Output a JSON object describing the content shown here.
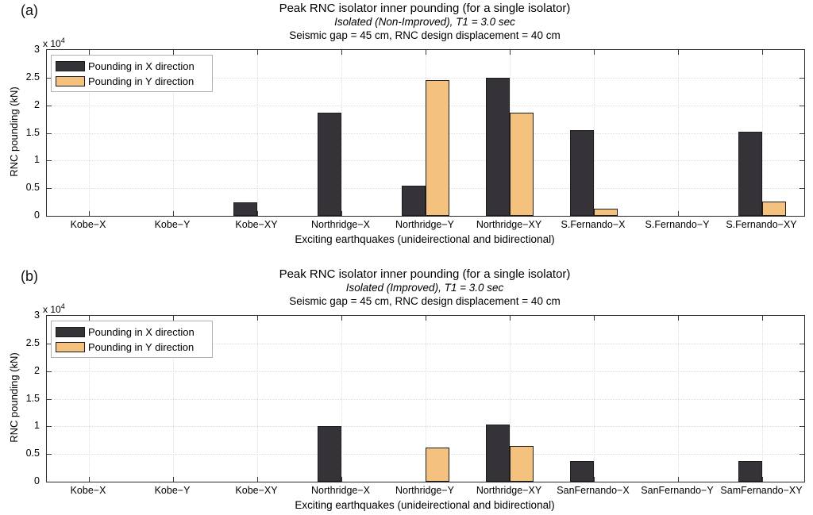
{
  "page": {
    "background": "#ffffff"
  },
  "colors": {
    "bar_x_fill": "#353338",
    "bar_y_fill": "#f5c17e",
    "bar_edge": "#1c1c1c",
    "axis": "#2b2b2b",
    "grid": "#dedede",
    "legend_border": "#b0b0b0"
  },
  "legend": {
    "items": [
      {
        "label": "Pounding in X direction"
      },
      {
        "label": "Pounding in Y direction"
      }
    ]
  },
  "axes": {
    "ylabel": "RNC pounding (kN)",
    "xlabel": "Exciting earthquakes (unideirectional and bidirectional)",
    "y_multiplier": "x 10",
    "y_multiplier_exp": "4",
    "yticks": [
      "0",
      "0.5",
      "1",
      "1.5",
      "2",
      "2.5",
      "3"
    ],
    "ylim": [
      0,
      3
    ],
    "grid": "on",
    "legend_position": "top-left inside"
  },
  "chart_data": [
    {
      "type": "bar",
      "panel_label": "(a)",
      "title": "Peak RNC isolator inner pounding (for a single isolator)",
      "subtitle": "Isolated (Non-Improved), T1 = 3.0 sec",
      "subtitle2": "Seismic gap = 45 cm, RNC design displacement = 40 cm",
      "values_scale": "x 10^4 kN",
      "ylim": [
        0,
        3
      ],
      "categories": [
        "Kobe−X",
        "Kobe−Y",
        "Kobe−XY",
        "Northridge−X",
        "Northridge−Y",
        "Northridge−XY",
        "S.Fernando−X",
        "S.Fernando−Y",
        "S.Fernando−XY"
      ],
      "series": [
        {
          "name": "Pounding in X direction",
          "values": [
            0,
            0,
            0.25,
            1.86,
            0.55,
            2.5,
            1.55,
            0,
            1.52
          ]
        },
        {
          "name": "Pounding in Y direction",
          "values": [
            0,
            0,
            0,
            0,
            2.45,
            1.86,
            0.13,
            0,
            0.26
          ]
        }
      ]
    },
    {
      "type": "bar",
      "panel_label": "(b)",
      "title": "Peak RNC isolator inner pounding (for a single isolator)",
      "subtitle": "Isolated (Improved), T1 = 3.0 sec",
      "subtitle2": "Seismic gap = 45 cm, RNC design displacement = 40 cm",
      "values_scale": "x 10^4 kN",
      "ylim": [
        0,
        3
      ],
      "categories": [
        "Kobe−X",
        "Kobe−Y",
        "Kobe−XY",
        "Northridge−X",
        "Northridge−Y",
        "Northridge−XY",
        "SanFernando−X",
        "SanFernando−Y",
        "SamFernando−XY"
      ],
      "series": [
        {
          "name": "Pounding in X direction",
          "values": [
            0,
            0,
            0,
            1.0,
            0,
            1.04,
            0.37,
            0,
            0.37
          ]
        },
        {
          "name": "Pounding in Y direction",
          "values": [
            0,
            0,
            0,
            0,
            0.62,
            0.65,
            0,
            0,
            0
          ]
        }
      ]
    }
  ]
}
